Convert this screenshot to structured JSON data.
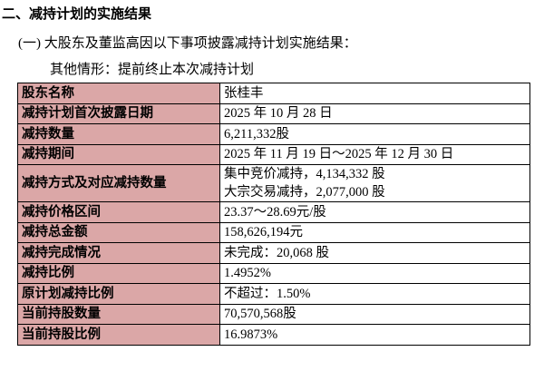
{
  "header": {
    "title": "二、减持计划的实施结果"
  },
  "section": {
    "title": "(一) 大股东及董监高因以下事项披露减持计划实施结果：",
    "note": "其他情形：提前终止本次减持计划"
  },
  "table": {
    "rows": [
      [
        "股东名称",
        "张桂丰"
      ],
      [
        "减持计划首次披露日期",
        "2025 年 10 月 28 日"
      ],
      [
        "减持数量",
        "6,211,332股"
      ],
      [
        "减持期间",
        "2025 年 11 月 19 日～2025 年 12 月 30 日"
      ],
      [
        "减持方式及对应减持数量",
        [
          "集中竞价减持，4,134,332 股",
          "大宗交易减持，2,077,000 股"
        ]
      ],
      [
        "减持价格区间",
        "23.37～28.69元/股"
      ],
      [
        "减持总金额",
        "158,626,194元"
      ],
      [
        "减持完成情况",
        "未完成：20,068 股"
      ],
      [
        "减持比例",
        "1.4952%"
      ],
      [
        "原计划减持比例",
        "不超过：1.50%"
      ],
      [
        "当前持股数量",
        "70,570,568股"
      ],
      [
        "当前持股比例",
        "16.9873%"
      ]
    ]
  }
}
